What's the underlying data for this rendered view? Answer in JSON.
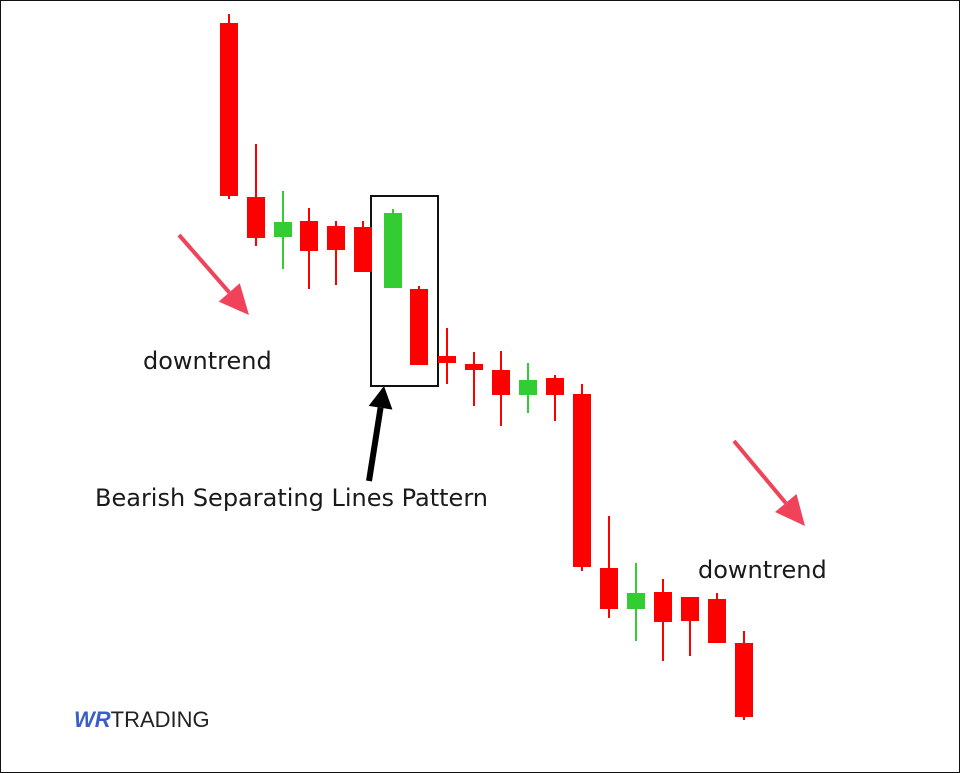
{
  "labels": {
    "downtrend_left": "downtrend",
    "pattern": "Bearish Separating Lines Pattern",
    "downtrend_right": "downtrend"
  },
  "logo": {
    "mark": "WR",
    "text": "TRADING"
  },
  "candles": [
    "bearish",
    "bearish",
    "bullish",
    "bearish",
    "bearish",
    "bearish",
    "bullish",
    "bearish",
    "bearish",
    "bearish",
    "bearish",
    "bullish",
    "bearish",
    "bearish",
    "bearish",
    "bullish",
    "bearish",
    "bearish",
    "bearish",
    "bearish"
  ],
  "colors": {
    "bearish": "#ff0000",
    "bullish": "#33cc33",
    "trend_arrow": "#f0435a",
    "pointer_arrow": "#000000",
    "logo_mark": "#3a5fc8"
  }
}
